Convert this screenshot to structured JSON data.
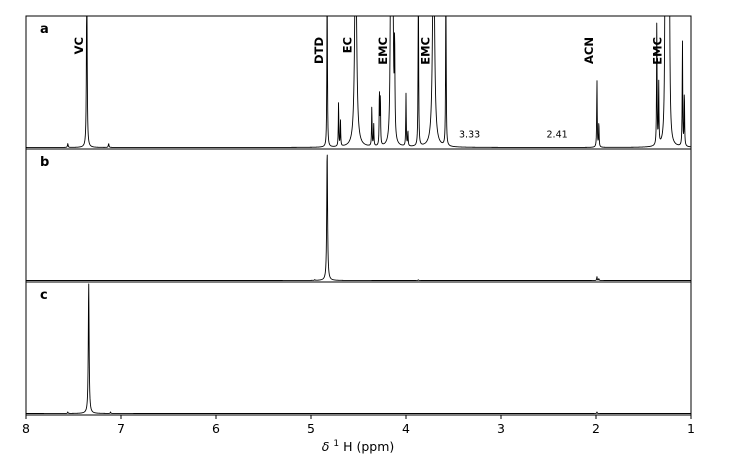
{
  "chart_data": {
    "type": "line",
    "title": "",
    "xlabel": "δ ¹H (ppm)",
    "xlabel_parts": {
      "symbol": "δ",
      "superscript": "1",
      "nucleus": "H",
      "unit": "(ppm)"
    },
    "xlim": [
      8,
      1
    ],
    "x_reversed": true,
    "xticks": [
      "8",
      "7",
      "6",
      "5",
      "4",
      "3",
      "2",
      "1"
    ],
    "xtick_values": [
      8,
      7,
      6,
      5,
      4,
      3,
      2,
      1
    ],
    "grid": false,
    "panels": [
      {
        "label": "a",
        "peak_labels": [
          {
            "text": "VC",
            "ppm": 7.36
          },
          {
            "text": "DTD",
            "ppm": 4.83
          },
          {
            "text": "EC",
            "ppm": 4.53
          },
          {
            "text": "EMC",
            "ppm": 4.16
          },
          {
            "text": "EMC",
            "ppm": 3.71
          },
          {
            "text": "ACN",
            "ppm": 1.99
          },
          {
            "text": "EMC",
            "ppm": 1.27
          }
        ],
        "annotations": [
          {
            "text": "3.33",
            "ppm": 3.33
          },
          {
            "text": "2.41",
            "ppm": 2.41
          }
        ],
        "peaks": [
          {
            "ppm": 7.36,
            "height": 1.5,
            "width": 0.004
          },
          {
            "ppm": 7.56,
            "height": 0.03,
            "width": 0.004
          },
          {
            "ppm": 7.13,
            "height": 0.03,
            "width": 0.004
          },
          {
            "ppm": 4.83,
            "height": 1.5,
            "width": 0.003
          },
          {
            "ppm": 4.71,
            "height": 0.34,
            "width": 0.003
          },
          {
            "ppm": 4.69,
            "height": 0.2,
            "width": 0.003
          },
          {
            "ppm": 4.53,
            "height": 1.8,
            "width": 0.011
          },
          {
            "ppm": 4.36,
            "height": 0.3,
            "width": 0.003
          },
          {
            "ppm": 4.34,
            "height": 0.17,
            "width": 0.003
          },
          {
            "ppm": 4.28,
            "height": 0.42,
            "width": 0.003
          },
          {
            "ppm": 4.27,
            "height": 0.38,
            "width": 0.003
          },
          {
            "ppm": 4.16,
            "height": 1.9,
            "width": 0.006
          },
          {
            "ppm": 4.14,
            "height": 1.9,
            "width": 0.006
          },
          {
            "ppm": 4.12,
            "height": 0.7,
            "width": 0.004
          },
          {
            "ppm": 4.0,
            "height": 0.4,
            "width": 0.003
          },
          {
            "ppm": 3.98,
            "height": 0.12,
            "width": 0.003
          },
          {
            "ppm": 3.87,
            "height": 1.5,
            "width": 0.003
          },
          {
            "ppm": 3.71,
            "height": 1.9,
            "width": 0.011
          },
          {
            "ppm": 3.58,
            "height": 1.5,
            "width": 0.003
          },
          {
            "ppm": 1.99,
            "height": 0.52,
            "width": 0.003
          },
          {
            "ppm": 1.97,
            "height": 0.19,
            "width": 0.003
          },
          {
            "ppm": 1.36,
            "height": 0.95,
            "width": 0.003
          },
          {
            "ppm": 1.34,
            "height": 0.48,
            "width": 0.003
          },
          {
            "ppm": 1.27,
            "height": 1.9,
            "width": 0.006
          },
          {
            "ppm": 1.25,
            "height": 1.9,
            "width": 0.006
          },
          {
            "ppm": 1.23,
            "height": 1.9,
            "width": 0.006
          },
          {
            "ppm": 1.09,
            "height": 0.82,
            "width": 0.003
          },
          {
            "ppm": 1.07,
            "height": 0.42,
            "width": 0.003
          }
        ]
      },
      {
        "label": "b",
        "peak_labels": [],
        "annotations": [],
        "peaks": [
          {
            "ppm": 4.83,
            "height": 1.0,
            "width": 0.005
          },
          {
            "ppm": 1.99,
            "height": 0.03,
            "width": 0.003
          },
          {
            "ppm": 1.97,
            "height": 0.015,
            "width": 0.003
          },
          {
            "ppm": 3.87,
            "height": 0.006,
            "width": 0.003
          },
          {
            "ppm": 4.96,
            "height": 0.006,
            "width": 0.003
          }
        ]
      },
      {
        "label": "c",
        "peak_labels": [],
        "annotations": [],
        "peaks": [
          {
            "ppm": 7.34,
            "height": 1.0,
            "width": 0.005
          },
          {
            "ppm": 7.56,
            "height": 0.012,
            "width": 0.003
          },
          {
            "ppm": 7.11,
            "height": 0.012,
            "width": 0.003
          },
          {
            "ppm": 1.99,
            "height": 0.012,
            "width": 0.003
          }
        ]
      }
    ]
  }
}
